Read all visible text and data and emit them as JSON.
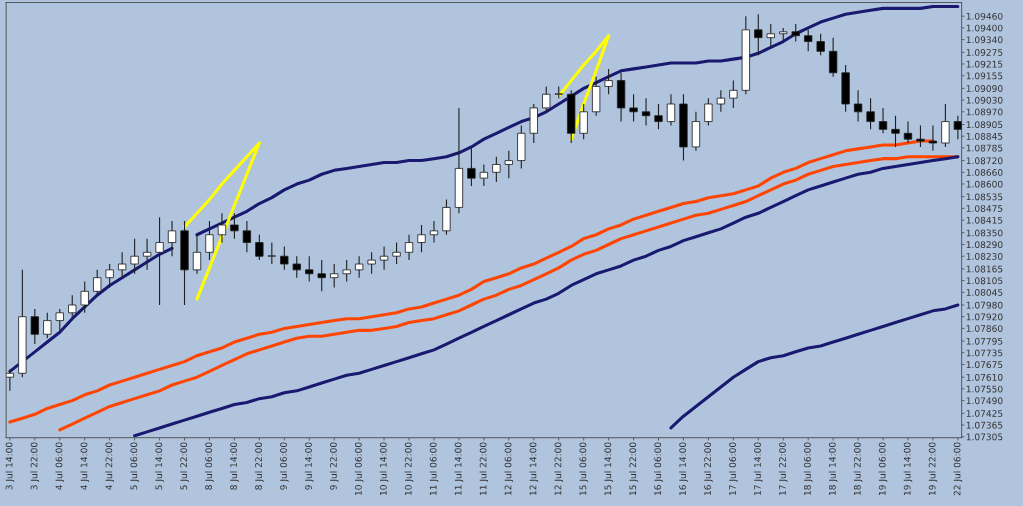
{
  "chart_data": {
    "type": "candlestick",
    "categories": [
      "3 Jul 14:00",
      null,
      "3 Jul 22:00",
      null,
      "4 Jul 06:00",
      null,
      "4 Jul 14:00",
      null,
      "4 Jul 22:00",
      null,
      "5 Jul 06:00",
      null,
      "5 Jul 14:00",
      null,
      "5 Jul 22:00",
      null,
      "8 Jul 06:00",
      null,
      "8 Jul 14:00",
      null,
      "8 Jul 22:00",
      null,
      "9 Jul 06:00",
      null,
      "9 Jul 14:00",
      null,
      "9 Jul 22:00",
      null,
      "10 Jul 06:00",
      null,
      "10 Jul 14:00",
      null,
      "10 Jul 22:00",
      null,
      "11 Jul 06:00",
      null,
      "11 Jul 14:00",
      null,
      "11 Jul 22:00",
      null,
      "12 Jul 06:00",
      null,
      "12 Jul 14:00",
      null,
      "12 Jul 22:00",
      null,
      "15 Jul 06:00",
      null,
      "15 Jul 14:00",
      null,
      "15 Jul 22:00",
      null,
      "16 Jul 06:00",
      null,
      "16 Jul 14:00",
      null,
      "16 Jul 22:00",
      null,
      "17 Jul 06:00",
      null,
      "17 Jul 14:00",
      null,
      "17 Jul 22:00",
      null,
      "18 Jul 06:00",
      null,
      "18 Jul 14:00",
      null,
      "18 Jul 22:00",
      null,
      "19 Jul 06:00",
      null,
      "19 Jul 14:00",
      null,
      "19 Jul 22:00",
      null,
      "22 Jul 06:00"
    ],
    "ohlc": [
      [
        1.0761,
        1.0765,
        1.0754,
        1.0763
      ],
      [
        1.0763,
        1.0816,
        1.0761,
        1.0792
      ],
      [
        1.0792,
        1.0796,
        1.0778,
        1.0783
      ],
      [
        1.0783,
        1.0794,
        1.0781,
        1.079
      ],
      [
        1.079,
        1.0796,
        1.0785,
        1.0794
      ],
      [
        1.0794,
        1.0803,
        1.0792,
        1.0798
      ],
      [
        1.0798,
        1.081,
        1.0794,
        1.0805
      ],
      [
        1.0805,
        1.0816,
        1.0803,
        1.0812
      ],
      [
        1.0812,
        1.0819,
        1.0807,
        1.0816
      ],
      [
        1.0816,
        1.0825,
        1.0812,
        1.0819
      ],
      [
        1.0819,
        1.0832,
        1.0814,
        1.0823
      ],
      [
        1.0823,
        1.0832,
        1.0816,
        1.0825
      ],
      [
        1.0825,
        1.0843,
        1.0798,
        1.083
      ],
      [
        1.083,
        1.0841,
        1.0823,
        1.0836
      ],
      [
        1.0836,
        1.0841,
        1.0798,
        1.0816
      ],
      [
        1.0816,
        1.0834,
        1.0814,
        1.0825
      ],
      [
        1.0825,
        1.0841,
        1.0821,
        1.0834
      ],
      [
        1.0834,
        1.0845,
        1.083,
        1.0839
      ],
      [
        1.0839,
        1.0845,
        1.0832,
        1.0836
      ],
      [
        1.0836,
        1.0841,
        1.0825,
        1.083
      ],
      [
        1.083,
        1.0834,
        1.0821,
        1.0823
      ],
      [
        1.0823,
        1.083,
        1.0819,
        1.0823
      ],
      [
        1.0823,
        1.0828,
        1.0816,
        1.0819
      ],
      [
        1.0819,
        1.0823,
        1.0812,
        1.0816
      ],
      [
        1.0816,
        1.0823,
        1.081,
        1.0814
      ],
      [
        1.0814,
        1.0821,
        1.0805,
        1.0812
      ],
      [
        1.0812,
        1.0819,
        1.0807,
        1.0814
      ],
      [
        1.0814,
        1.0821,
        1.081,
        1.0816
      ],
      [
        1.0816,
        1.0823,
        1.0812,
        1.0819
      ],
      [
        1.0819,
        1.0825,
        1.0814,
        1.0821
      ],
      [
        1.0821,
        1.0828,
        1.0816,
        1.0823
      ],
      [
        1.0823,
        1.083,
        1.0819,
        1.0825
      ],
      [
        1.0825,
        1.0834,
        1.0821,
        1.083
      ],
      [
        1.083,
        1.0839,
        1.0825,
        1.0834
      ],
      [
        1.0834,
        1.0841,
        1.083,
        1.0836
      ],
      [
        1.0836,
        1.0852,
        1.0834,
        1.0848
      ],
      [
        1.0848,
        1.0899,
        1.0845,
        1.0868
      ],
      [
        1.0868,
        1.0879,
        1.0859,
        1.0863
      ],
      [
        1.0863,
        1.087,
        1.0859,
        1.0866
      ],
      [
        1.0866,
        1.0874,
        1.0861,
        1.087
      ],
      [
        1.087,
        1.0877,
        1.0863,
        1.0872
      ],
      [
        1.0872,
        1.089,
        1.0868,
        1.0886
      ],
      [
        1.0886,
        1.0901,
        1.0881,
        1.0899
      ],
      [
        1.0899,
        1.091,
        1.0897,
        1.0906
      ],
      [
        1.0906,
        1.091,
        1.0904,
        1.0906
      ],
      [
        1.0906,
        1.0908,
        1.0881,
        1.0886
      ],
      [
        1.0886,
        1.0901,
        1.0883,
        1.0897
      ],
      [
        1.0897,
        1.0915,
        1.0895,
        1.091
      ],
      [
        1.091,
        1.0919,
        1.0906,
        1.0913
      ],
      [
        1.0913,
        1.0917,
        1.0892,
        1.0899
      ],
      [
        1.0899,
        1.0906,
        1.0892,
        1.0897
      ],
      [
        1.0897,
        1.0904,
        1.089,
        1.0895
      ],
      [
        1.0895,
        1.0901,
        1.0888,
        1.0892
      ],
      [
        1.0892,
        1.0906,
        1.089,
        1.0901
      ],
      [
        1.0901,
        1.0906,
        1.0872,
        1.0879
      ],
      [
        1.0879,
        1.0897,
        1.0877,
        1.0892
      ],
      [
        1.0892,
        1.0904,
        1.089,
        1.0901
      ],
      [
        1.0901,
        1.0908,
        1.0897,
        1.0904
      ],
      [
        1.0904,
        1.0913,
        1.0899,
        1.0908
      ],
      [
        1.0908,
        1.0946,
        1.0906,
        1.0939
      ],
      [
        1.0939,
        1.0947,
        1.0926,
        1.0935
      ],
      [
        1.0935,
        1.0942,
        1.093,
        1.0937
      ],
      [
        1.0937,
        1.094,
        1.0933,
        1.0938
      ],
      [
        1.0938,
        1.0942,
        1.0933,
        1.0936
      ],
      [
        1.0936,
        1.0939,
        1.0928,
        1.0933
      ],
      [
        1.0933,
        1.0937,
        1.0926,
        1.0928
      ],
      [
        1.0928,
        1.0935,
        1.0915,
        1.0917
      ],
      [
        1.0917,
        1.0921,
        1.0897,
        1.0901
      ],
      [
        1.0901,
        1.0908,
        1.0892,
        1.0897
      ],
      [
        1.0897,
        1.0904,
        1.0888,
        1.0892
      ],
      [
        1.0892,
        1.0899,
        1.0886,
        1.0888
      ],
      [
        1.0888,
        1.0895,
        1.0879,
        1.0886
      ],
      [
        1.0886,
        1.0892,
        1.0881,
        1.0883
      ],
      [
        1.0883,
        1.089,
        1.0879,
        1.0882
      ],
      [
        1.0882,
        1.089,
        1.0877,
        1.0881
      ],
      [
        1.0881,
        1.0901,
        1.0879,
        1.0892
      ],
      [
        1.0892,
        1.0895,
        1.0883,
        1.0888
      ]
    ],
    "series": [
      {
        "type": "line",
        "color": "#191970",
        "values": [
          1.0764,
          1.0769,
          1.0774,
          1.0779,
          1.0784,
          1.0791,
          1.0797,
          1.0803,
          1.0808,
          1.0812,
          1.0816,
          1.082,
          1.0824,
          1.0827,
          null,
          1.0834,
          1.0837,
          1.084,
          1.0843,
          1.0846,
          1.085,
          1.0853,
          1.0857,
          1.086,
          1.0862,
          1.0865,
          1.0867,
          1.0868,
          1.0869,
          1.087,
          1.0871,
          1.0871,
          1.0872,
          1.0872,
          1.0873,
          1.0874,
          1.0876,
          1.0879,
          1.0883,
          1.0886,
          1.0889,
          1.0892,
          1.0894,
          1.0897,
          1.0901,
          1.0905,
          1.0909,
          1.0912,
          1.0915,
          1.0918,
          1.0919,
          1.092,
          1.0921,
          1.0922,
          1.0922,
          1.0922,
          1.0923,
          1.0923,
          1.0924,
          1.0925,
          1.0927,
          1.093,
          1.0933,
          1.0937,
          1.094,
          1.0943,
          1.0945,
          1.0947,
          1.0948,
          1.0949,
          1.095,
          1.095,
          1.095,
          1.095,
          1.0951,
          1.0951,
          1.0951
        ]
      },
      {
        "type": "line",
        "color": "#ff4500",
        "values": [
          1.0738,
          1.074,
          1.0742,
          1.0745,
          1.0747,
          1.0749,
          1.0752,
          1.0754,
          1.0757,
          1.0759,
          1.0761,
          1.0763,
          1.0765,
          1.0767,
          1.0769,
          1.0772,
          1.0774,
          1.0776,
          1.0779,
          1.0781,
          1.0783,
          1.0784,
          1.0786,
          1.0787,
          1.0788,
          1.0789,
          1.079,
          1.0791,
          1.0791,
          1.0792,
          1.0793,
          1.0794,
          1.0796,
          1.0797,
          1.0799,
          1.0801,
          1.0803,
          1.0806,
          1.081,
          1.0812,
          1.0814,
          1.0817,
          1.0819,
          1.0822,
          1.0825,
          1.0828,
          1.0832,
          1.0834,
          1.0837,
          1.0839,
          1.0842,
          1.0844,
          1.0846,
          1.0848,
          1.085,
          1.0851,
          1.0853,
          1.0854,
          1.0855,
          1.0857,
          1.0859,
          1.0863,
          1.0866,
          1.0868,
          1.0871,
          1.0873,
          1.0875,
          1.0877,
          1.0878,
          1.0879,
          1.088,
          1.088,
          1.0881,
          1.0882,
          1.0882,
          null,
          null
        ]
      },
      {
        "type": "line",
        "color": "#ff4500",
        "values": [
          null,
          null,
          null,
          null,
          1.0734,
          1.0737,
          1.074,
          1.0743,
          1.0746,
          1.0748,
          1.075,
          1.0752,
          1.0754,
          1.0757,
          1.0759,
          1.0761,
          1.0764,
          1.0767,
          1.077,
          1.0773,
          1.0775,
          1.0777,
          1.0779,
          1.0781,
          1.0782,
          1.0782,
          1.0783,
          1.0784,
          1.0785,
          1.0785,
          1.0786,
          1.0787,
          1.0789,
          1.079,
          1.0791,
          1.0793,
          1.0795,
          1.0798,
          1.0801,
          1.0803,
          1.0806,
          1.0808,
          1.0811,
          1.0814,
          1.0817,
          1.0821,
          1.0824,
          1.0826,
          1.0829,
          1.0832,
          1.0834,
          1.0836,
          1.0838,
          1.084,
          1.0842,
          1.0844,
          1.0845,
          1.0847,
          1.0849,
          1.0851,
          1.0854,
          1.0857,
          1.086,
          1.0862,
          1.0865,
          1.0867,
          1.0869,
          1.087,
          1.0871,
          1.0872,
          1.0873,
          1.0873,
          1.0874,
          1.0874,
          1.0874,
          1.0874,
          1.0874
        ]
      },
      {
        "type": "line",
        "color": "#191970",
        "values": [
          null,
          null,
          null,
          null,
          null,
          null,
          null,
          null,
          null,
          null,
          1.0731,
          1.0733,
          1.0735,
          1.0737,
          1.0739,
          1.0741,
          1.0743,
          1.0745,
          1.0747,
          1.0748,
          1.075,
          1.0751,
          1.0753,
          1.0754,
          1.0756,
          1.0758,
          1.076,
          1.0762,
          1.0763,
          1.0765,
          1.0767,
          1.0769,
          1.0771,
          1.0773,
          1.0775,
          1.0778,
          1.0781,
          1.0784,
          1.0787,
          1.079,
          1.0793,
          1.0796,
          1.0799,
          1.0801,
          1.0804,
          1.0808,
          1.0811,
          1.0814,
          1.0816,
          1.0818,
          1.0821,
          1.0823,
          1.0826,
          1.0828,
          1.0831,
          1.0833,
          1.0835,
          1.0837,
          1.084,
          1.0843,
          1.0845,
          1.0848,
          1.0851,
          1.0854,
          1.0857,
          1.0859,
          1.0861,
          1.0863,
          1.0865,
          1.0866,
          1.0868,
          1.0869,
          1.087,
          1.0871,
          1.0872,
          1.0873,
          1.0874
        ]
      },
      {
        "type": "line",
        "color": "#191970",
        "values": [
          null,
          null,
          null,
          null,
          null,
          null,
          null,
          null,
          null,
          null,
          null,
          null,
          null,
          null,
          null,
          null,
          null,
          null,
          null,
          null,
          null,
          null,
          null,
          null,
          null,
          null,
          null,
          null,
          null,
          null,
          null,
          null,
          null,
          null,
          null,
          null,
          null,
          null,
          null,
          null,
          null,
          null,
          null,
          null,
          null,
          null,
          null,
          null,
          null,
          null,
          null,
          null,
          null,
          1.0735,
          1.0741,
          1.0746,
          1.0751,
          1.0756,
          1.0761,
          1.0765,
          1.0769,
          1.0771,
          1.0772,
          1.0774,
          1.0776,
          1.0777,
          1.0779,
          1.0781,
          1.0783,
          1.0785,
          1.0787,
          1.0789,
          1.0791,
          1.0793,
          1.0795,
          1.0796,
          1.0798
        ]
      },
      {
        "type": "line",
        "color": "#ffff00",
        "values": [
          null,
          null,
          null,
          null,
          null,
          null,
          null,
          null,
          null,
          null,
          null,
          null,
          null,
          null,
          1.0838,
          1.0845,
          1.0852,
          1.086,
          1.0867,
          1.0874,
          1.0881,
          null,
          null,
          null,
          null,
          null,
          null,
          null,
          null,
          null,
          null,
          null,
          null,
          null,
          null,
          null,
          null,
          null,
          null,
          null,
          null,
          null,
          null,
          null,
          null,
          null,
          null,
          null,
          null,
          null,
          null,
          null,
          null,
          null,
          null,
          null,
          null,
          null,
          null,
          null,
          null,
          null,
          null,
          null,
          null,
          null,
          null,
          null,
          null,
          null,
          null,
          null,
          null,
          null,
          null,
          null,
          null
        ]
      },
      {
        "type": "line",
        "color": "#ffff00",
        "values": [
          null,
          null,
          null,
          null,
          null,
          null,
          null,
          null,
          null,
          null,
          null,
          null,
          null,
          null,
          null,
          1.0801,
          1.0817,
          1.0833,
          1.0849,
          1.0865,
          1.0881,
          null,
          null,
          null,
          null,
          null,
          null,
          null,
          null,
          null,
          null,
          null,
          null,
          null,
          null,
          null,
          null,
          null,
          null,
          null,
          null,
          null,
          null,
          null,
          null,
          null,
          null,
          null,
          null,
          null,
          null,
          null,
          null,
          null,
          null,
          null,
          null,
          null,
          null,
          null,
          null,
          null,
          null,
          null,
          null,
          null,
          null,
          null,
          null,
          null,
          null,
          null,
          null,
          null,
          null,
          null,
          null
        ]
      },
      {
        "type": "line",
        "color": "#ffff00",
        "values": [
          null,
          null,
          null,
          null,
          null,
          null,
          null,
          null,
          null,
          null,
          null,
          null,
          null,
          null,
          null,
          null,
          null,
          null,
          null,
          null,
          null,
          null,
          null,
          null,
          null,
          null,
          null,
          null,
          null,
          null,
          null,
          null,
          null,
          null,
          null,
          null,
          null,
          null,
          null,
          null,
          null,
          null,
          null,
          null,
          1.0905,
          1.0913,
          1.0921,
          1.0928,
          1.0936,
          null,
          null,
          null,
          null,
          null,
          null,
          null,
          null,
          null,
          null,
          null,
          null,
          null,
          null,
          null,
          null,
          null,
          null,
          null,
          null,
          null,
          null,
          null,
          null,
          null,
          null,
          null,
          null
        ]
      },
      {
        "type": "line",
        "color": "#ffff00",
        "values": [
          null,
          null,
          null,
          null,
          null,
          null,
          null,
          null,
          null,
          null,
          null,
          null,
          null,
          null,
          null,
          null,
          null,
          null,
          null,
          null,
          null,
          null,
          null,
          null,
          null,
          null,
          null,
          null,
          null,
          null,
          null,
          null,
          null,
          null,
          null,
          null,
          null,
          null,
          null,
          null,
          null,
          null,
          null,
          null,
          null,
          1.0883,
          1.0901,
          1.0918,
          1.0936,
          null,
          null,
          null,
          null,
          null,
          null,
          null,
          null,
          null,
          null,
          null,
          null,
          null,
          null,
          null,
          null,
          null,
          null,
          null,
          null,
          null,
          null,
          null,
          null,
          null,
          null,
          null,
          null
        ]
      }
    ],
    "ylim": [
      1.073,
      1.0953
    ],
    "yticks": [
      {
        "value": 1.07305,
        "label": "1.07305"
      },
      {
        "value": 1.07365,
        "label": "1.07365"
      },
      {
        "value": 1.07425,
        "label": "1.07425"
      },
      {
        "value": 1.0749,
        "label": "1.07490"
      },
      {
        "value": 1.0755,
        "label": "1.07550"
      },
      {
        "value": 1.0761,
        "label": "1.07610"
      },
      {
        "value": 1.07675,
        "label": "1.07675"
      },
      {
        "value": 1.07735,
        "label": "1.07735"
      },
      {
        "value": 1.07795,
        "label": "1.07795"
      },
      {
        "value": 1.0786,
        "label": "1.07860"
      },
      {
        "value": 1.0792,
        "label": "1.07920"
      },
      {
        "value": 1.0798,
        "label": "1.07980"
      },
      {
        "value": 1.08045,
        "label": "1.08045"
      },
      {
        "value": 1.08105,
        "label": "1.08105"
      },
      {
        "value": 1.08165,
        "label": "1.08165"
      },
      {
        "value": 1.0823,
        "label": "1.08230"
      },
      {
        "value": 1.0829,
        "label": "1.08290"
      },
      {
        "value": 1.0835,
        "label": "1.08350"
      },
      {
        "value": 1.08415,
        "label": "1.08415"
      },
      {
        "value": 1.08475,
        "label": "1.08475"
      },
      {
        "value": 1.08535,
        "label": "1.08535"
      },
      {
        "value": 1.086,
        "label": "1.08600"
      },
      {
        "value": 1.0866,
        "label": "1.08660"
      },
      {
        "value": 1.0872,
        "label": "1.08720"
      },
      {
        "value": 1.08785,
        "label": "1.08785"
      },
      {
        "value": 1.08845,
        "label": "1.08845"
      },
      {
        "value": 1.08905,
        "label": "1.08905"
      },
      {
        "value": 1.0897,
        "label": "1.08970"
      },
      {
        "value": 1.0903,
        "label": "1.09030"
      },
      {
        "value": 1.0909,
        "label": "1.09090"
      },
      {
        "value": 1.09155,
        "label": "1.09155"
      },
      {
        "value": 1.09215,
        "label": "1.09215"
      },
      {
        "value": 1.09275,
        "label": "1.09275"
      },
      {
        "value": 1.0934,
        "label": "1.09340"
      },
      {
        "value": 1.094,
        "label": "1.09400"
      },
      {
        "value": 1.0946,
        "label": "1.09460"
      }
    ],
    "grid": false,
    "legend": false
  }
}
